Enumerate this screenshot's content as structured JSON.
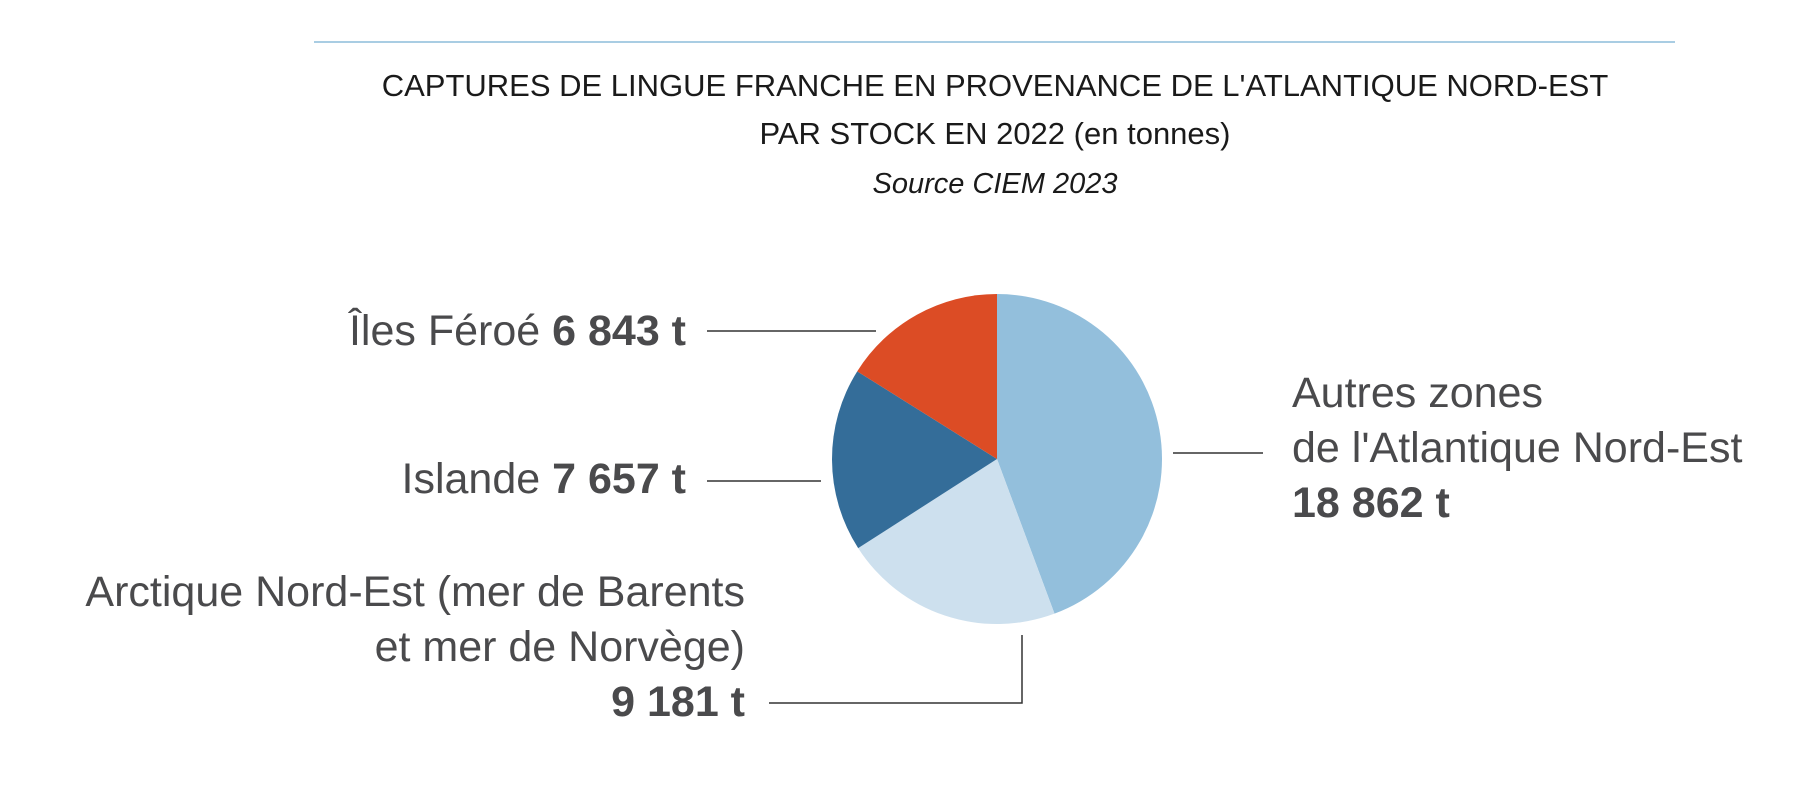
{
  "chart_data": {
    "type": "pie",
    "title_line1": "CAPTURES DE LINGUE FRANCHE EN PROVENANCE DE L'ATLANTIQUE NORD-EST",
    "title_line2": "PAR STOCK EN 2022",
    "title_unit": "(en tonnes)",
    "subtitle": "Source CIEM 2023",
    "slices": [
      {
        "name": "Autres zones de l'Atlantique Nord-Est",
        "name_line1": "Autres zones",
        "name_line2": "de l'Atlantique Nord-Est",
        "value": 18862,
        "value_label": "18 862 t",
        "color": "#93bfdc"
      },
      {
        "name": "Arctique Nord-Est (mer de Barents et mer de Norvège)",
        "name_line1": "Arctique Nord-Est (mer de Barents",
        "name_line2": "et mer de Norvège)",
        "value": 9181,
        "value_label": "9 181 t",
        "color": "#cde0ee"
      },
      {
        "name": "Islande",
        "value": 7657,
        "value_label": "7 657 t",
        "color": "#346d99"
      },
      {
        "name": "Îles Féroé",
        "value": 6843,
        "value_label": "6 843 t",
        "color": "#dc4c25"
      }
    ]
  }
}
